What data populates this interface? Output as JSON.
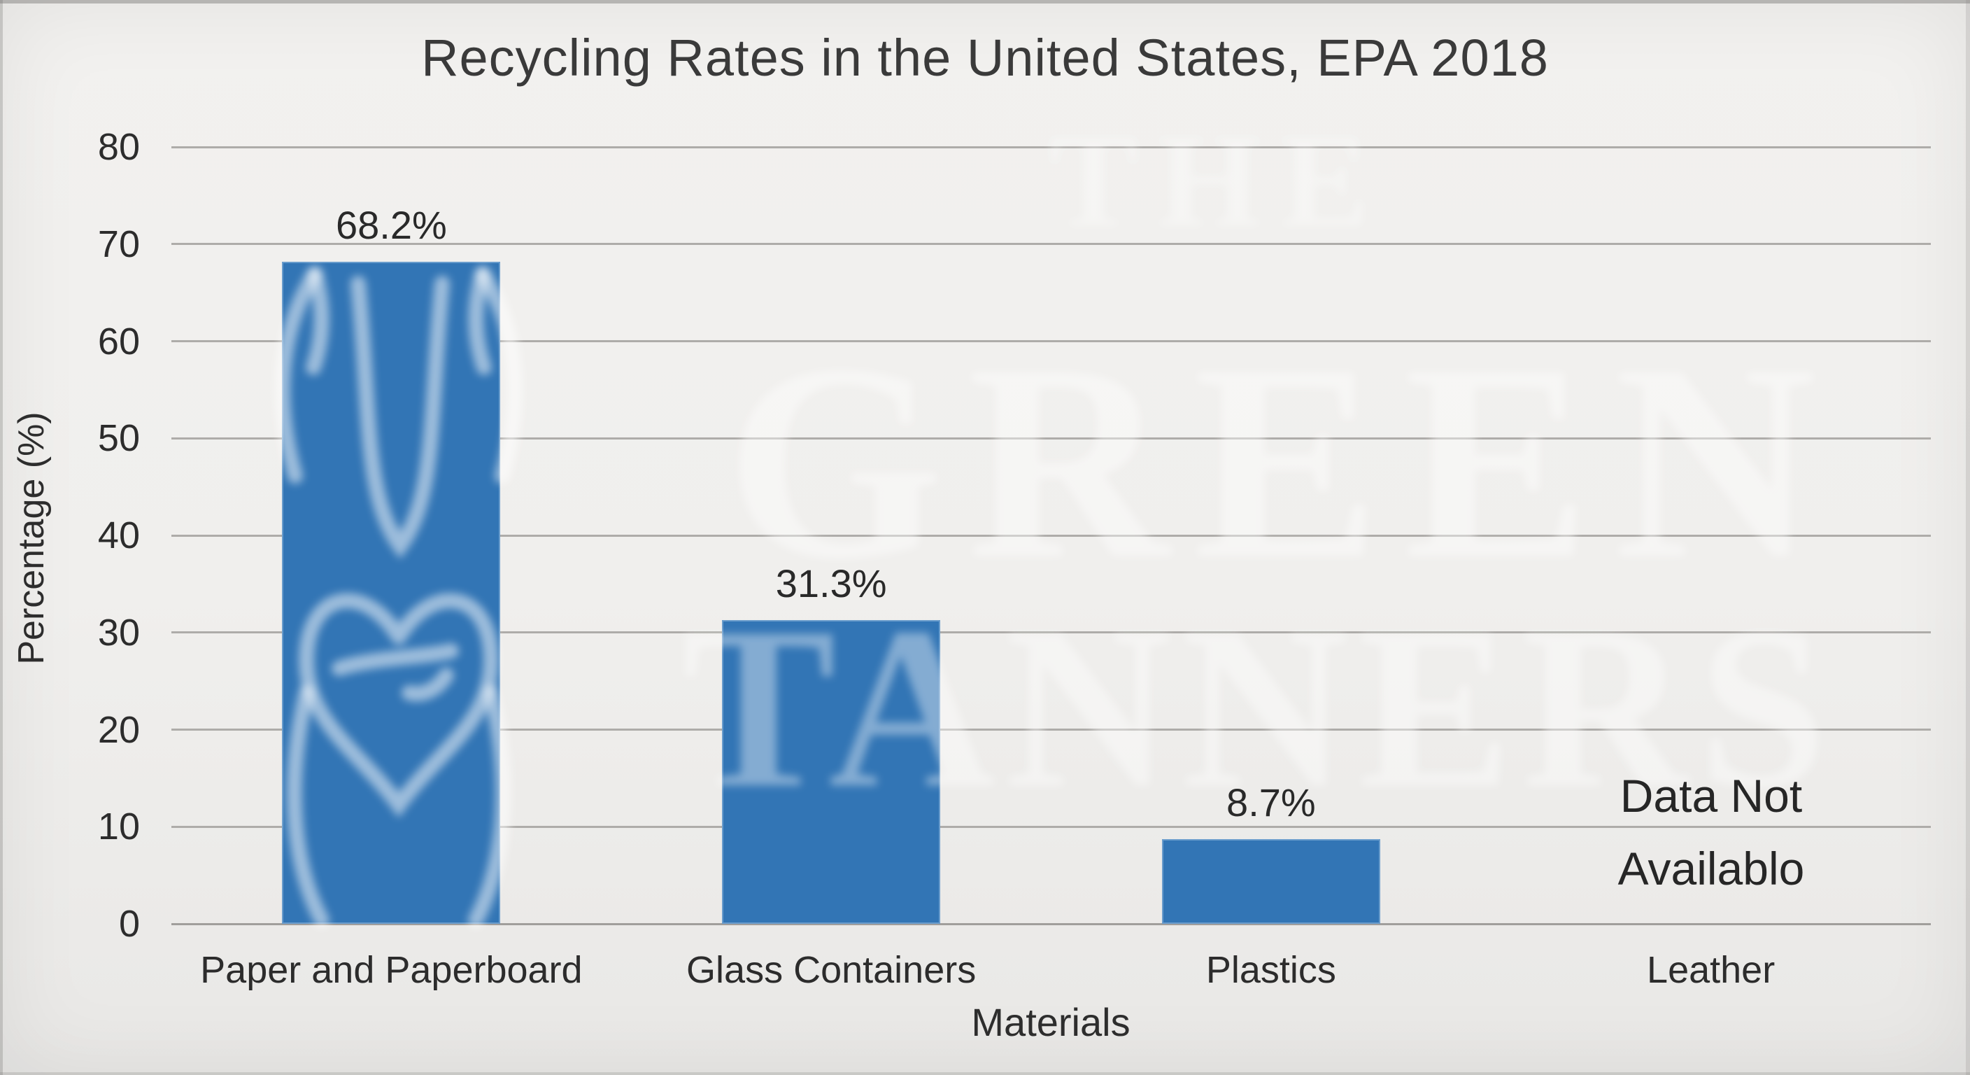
{
  "chart_data": {
    "type": "bar",
    "title": "Recycling Rates in the United States, EPA 2018",
    "xlabel": "Materials",
    "ylabel": "Percentage (%)",
    "ylim": [
      0,
      80
    ],
    "yticks": [
      0,
      10,
      20,
      30,
      40,
      50,
      60,
      70,
      80
    ],
    "grid": true,
    "categories": [
      "Paper and Paperboard",
      "Glass Containers",
      "Plastics",
      "Leather"
    ],
    "values": [
      68.2,
      31.3,
      8.7,
      null
    ],
    "value_labels": [
      "68.2%",
      "31.3%",
      "8.7%",
      ""
    ],
    "missing_note_lines": [
      "Data Not",
      "Availablo"
    ],
    "bar_color": "#3275b5"
  },
  "watermark": {
    "line1": "THE",
    "line2": "GREEN",
    "line3": "TANNERS",
    "emblem": "floral-tulip-heart-logo"
  }
}
